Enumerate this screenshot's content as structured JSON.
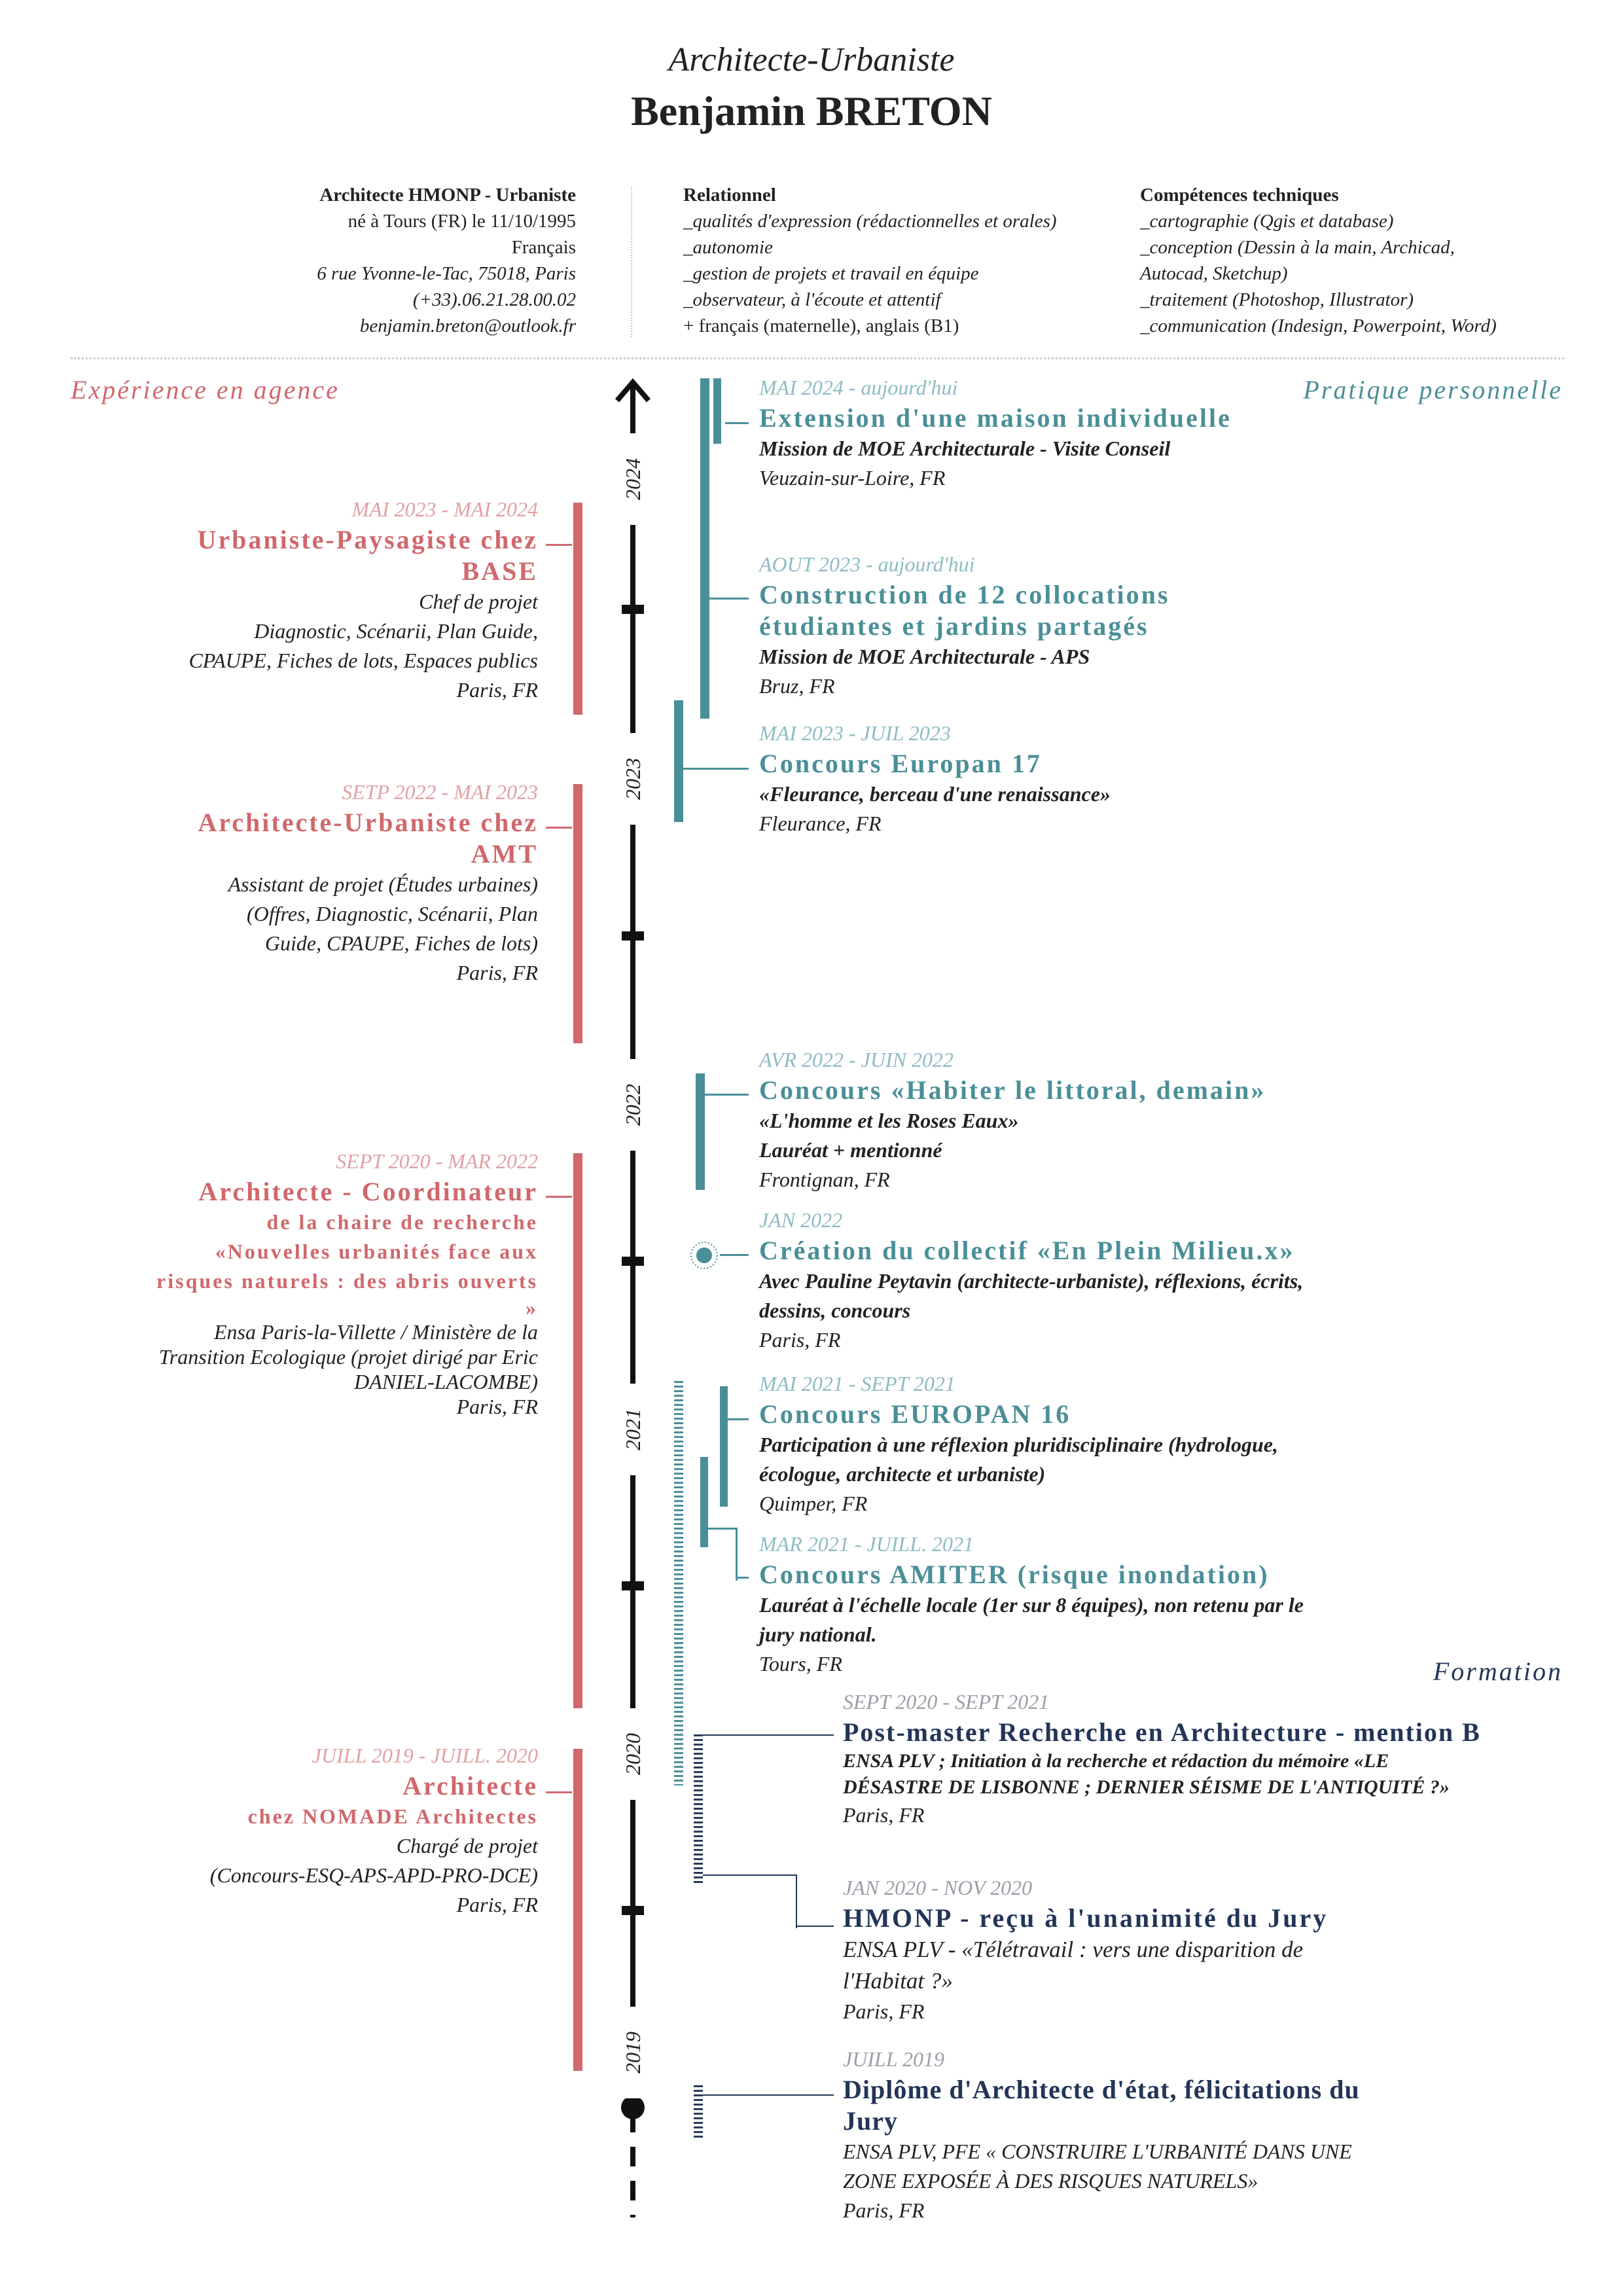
{
  "header": {
    "subtitle": "Architecte-Urbaniste",
    "name": "Benjamin BRETON"
  },
  "identity": {
    "title": "Architecte HMONP - Urbaniste",
    "lines": [
      "né à Tours (FR) le 11/10/1995",
      "Français",
      "6 rue Yvonne-le-Tac, 75018, Paris",
      "(+33).06.21.28.00.02",
      "benjamin.breton@outlook.fr"
    ]
  },
  "relational": {
    "title": "Relationnel",
    "lines": [
      "_qualités d'expression (rédactionnelles et orales)",
      "_autonomie",
      "_gestion de projets et travail en équipe",
      "_observateur, à l'écoute et attentif",
      "+ français (maternelle), anglais (B1)"
    ]
  },
  "skills": {
    "title": "Compétences techniques",
    "lines": [
      "_cartographie (Qgis et database)",
      "_conception (Dessin à la main, Archicad,",
      "Autocad, Sketchup)",
      "_traitement (Photoshop, Illustrator)",
      "_communication (Indesign, Powerpoint, Word)"
    ]
  },
  "sections": {
    "agency": "Expérience en agence",
    "personal": "Pratique personnelle",
    "education": "Formation"
  },
  "years": [
    "2024",
    "2023",
    "2022",
    "2021",
    "2020",
    "2019"
  ],
  "agency": [
    {
      "date": "MAI 2023 - MAI 2024",
      "title": [
        "Urbaniste-Paysagiste chez",
        "BASE"
      ],
      "lines": [
        "Chef de projet",
        "Diagnostic, Scénarii, Plan Guide,",
        "CPAUPE, Fiches de lots, Espaces publics",
        "Paris, FR"
      ]
    },
    {
      "date": "SETP 2022 - MAI 2023",
      "title": [
        "Architecte-Urbaniste chez",
        "AMT"
      ],
      "lines": [
        "Assistant de projet (Études urbaines)",
        "(Offres, Diagnostic, Scénarii, Plan",
        "Guide, CPAUPE, Fiches de lots)",
        "Paris, FR"
      ]
    },
    {
      "date": "SEPT 2020 - MAR 2022",
      "title": [
        "Architecte - Coordinateur",
        "de la chaire de recherche",
        "«Nouvelles urbanités face aux",
        "risques naturels : des abris ouverts",
        "»"
      ],
      "lines": [
        "Ensa Paris-la-Villette / Ministère de la",
        "Transition Ecologique (projet dirigé par Eric",
        "DANIEL-LACOMBE)",
        "Paris, FR"
      ]
    },
    {
      "date": "JUILL 2019 - JUILL. 2020",
      "title": [
        "Architecte",
        "chez NOMADE Architectes"
      ],
      "lines": [
        "Chargé de projet",
        "(Concours-ESQ-APS-APD-PRO-DCE)",
        "Paris, FR"
      ]
    }
  ],
  "personal": [
    {
      "date": "MAI 2024 - aujourd'hui",
      "title": [
        "Extension d'une maison individuelle"
      ],
      "bold": [
        "Mission de MOE Architecturale - Visite Conseil"
      ],
      "place": "Veuzain-sur-Loire, FR"
    },
    {
      "date": "AOUT 2023 - aujourd'hui",
      "title": [
        "Construction de 12 collocations",
        "étudiantes et jardins partagés"
      ],
      "bold": [
        "Mission de MOE Architecturale - APS"
      ],
      "place": "Bruz, FR"
    },
    {
      "date": "MAI 2023 - JUIL 2023",
      "title": [
        "Concours Europan 17"
      ],
      "bold": [
        "«Fleurance, berceau d'une renaissance»"
      ],
      "place": "Fleurance, FR"
    },
    {
      "date": "AVR 2022 - JUIN 2022",
      "title": [
        "Concours «Habiter le littoral, demain»"
      ],
      "bold": [
        "«L'homme et les Roses Eaux»",
        "Lauréat + mentionné"
      ],
      "place": "Frontignan, FR"
    },
    {
      "date": "JAN 2022",
      "title": [
        "Création du collectif «En Plein Milieu.x»"
      ],
      "bold": [
        "Avec Pauline Peytavin (architecte-urbaniste), réflexions, écrits,",
        "dessins, concours"
      ],
      "place": "Paris, FR"
    },
    {
      "date": "MAI 2021 - SEPT 2021",
      "title": [
        "Concours EUROPAN 16"
      ],
      "bold": [
        "Participation à une réflexion pluridisciplinaire (hydrologue,",
        "écologue, architecte et urbaniste)"
      ],
      "place": "Quimper, FR"
    },
    {
      "date": "MAR 2021 - JUILL. 2021",
      "title": [
        "Concours AMITER (risque inondation)"
      ],
      "bold": [
        "Lauréat à l'échelle locale (1er sur 8 équipes), non retenu par le",
        "jury national."
      ],
      "place": "Tours, FR"
    }
  ],
  "education": [
    {
      "date": "SEPT 2020 - SEPT 2021",
      "title": [
        "Post-master Recherche en Architecture - mention B"
      ],
      "lines": [
        "ENSA PLV ; Initiation à la recherche et rédaction du mémoire «LE",
        "DÉSASTRE DE LISBONNE ; DERNIER SÉISME DE L'ANTIQUITÉ ?»"
      ],
      "place": "Paris, FR"
    },
    {
      "date": "JAN 2020 - NOV 2020",
      "title": [
        "HMONP - reçu à l'unanimité du Jury"
      ],
      "lines": [
        "ENSA PLV - «Télétravail : vers une disparition de",
        "l'Habitat ?»"
      ],
      "place": "Paris, FR"
    },
    {
      "date": "JUILL 2019",
      "title": [
        "Diplôme d'Architecte d'état, félicitations du",
        "Jury"
      ],
      "lines": [
        "ENSA PLV, PFE « CONSTRUIRE L'URBANITÉ DANS UNE",
        "ZONE EXPOSÉE À DES RISQUES NATURELS»"
      ],
      "place": "Paris, FR"
    }
  ],
  "colors": {
    "agency": "#d0686c",
    "personal": "#4a8f98",
    "education": "#233557"
  }
}
